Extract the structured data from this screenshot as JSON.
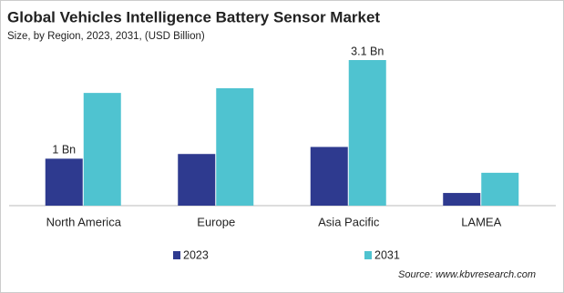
{
  "chart_data": {
    "type": "bar",
    "title": "Global Vehicles Intelligence Battery Sensor Market",
    "subtitle": "Size, by Region, 2023, 2031, (USD Billion)",
    "categories": [
      "North America",
      "Europe",
      "Asia Pacific",
      "LAMEA"
    ],
    "series": [
      {
        "name": "2023",
        "color": "#2e3a8f",
        "values": [
          1,
          1.1,
          1.25,
          0.27
        ],
        "value_labels": [
          "1 Bn",
          null,
          null,
          null
        ]
      },
      {
        "name": "2031",
        "color": "#4fc3d0",
        "values": [
          2.4,
          2.5,
          3.1,
          0.7
        ],
        "value_labels": [
          null,
          null,
          "3.1 Bn",
          null
        ]
      }
    ],
    "legend": "bottom",
    "source": "Source: www.kbvresearch.com"
  }
}
